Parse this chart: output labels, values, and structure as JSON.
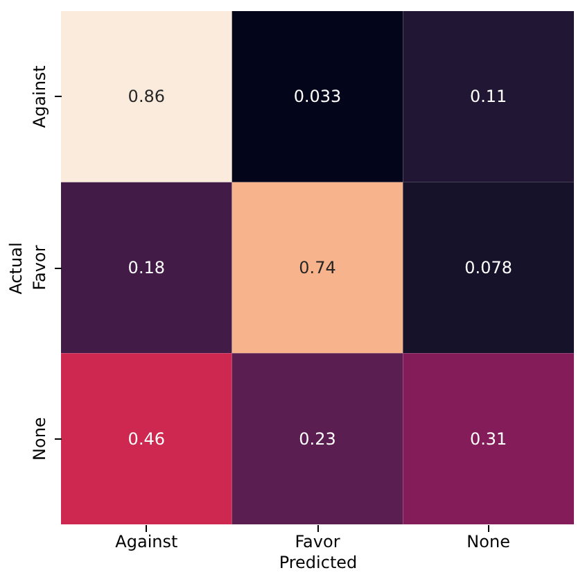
{
  "chart_data": {
    "type": "heatmap",
    "xlabel": "Predicted",
    "ylabel": "Actual",
    "categories": [
      "Against",
      "Favor",
      "None"
    ],
    "y_categories": [
      "Against",
      "Favor",
      "None"
    ],
    "cells": [
      [
        0.86,
        0.033,
        0.11
      ],
      [
        0.18,
        0.74,
        0.078
      ],
      [
        0.46,
        0.23,
        0.31
      ]
    ],
    "data_labels": true
  }
}
